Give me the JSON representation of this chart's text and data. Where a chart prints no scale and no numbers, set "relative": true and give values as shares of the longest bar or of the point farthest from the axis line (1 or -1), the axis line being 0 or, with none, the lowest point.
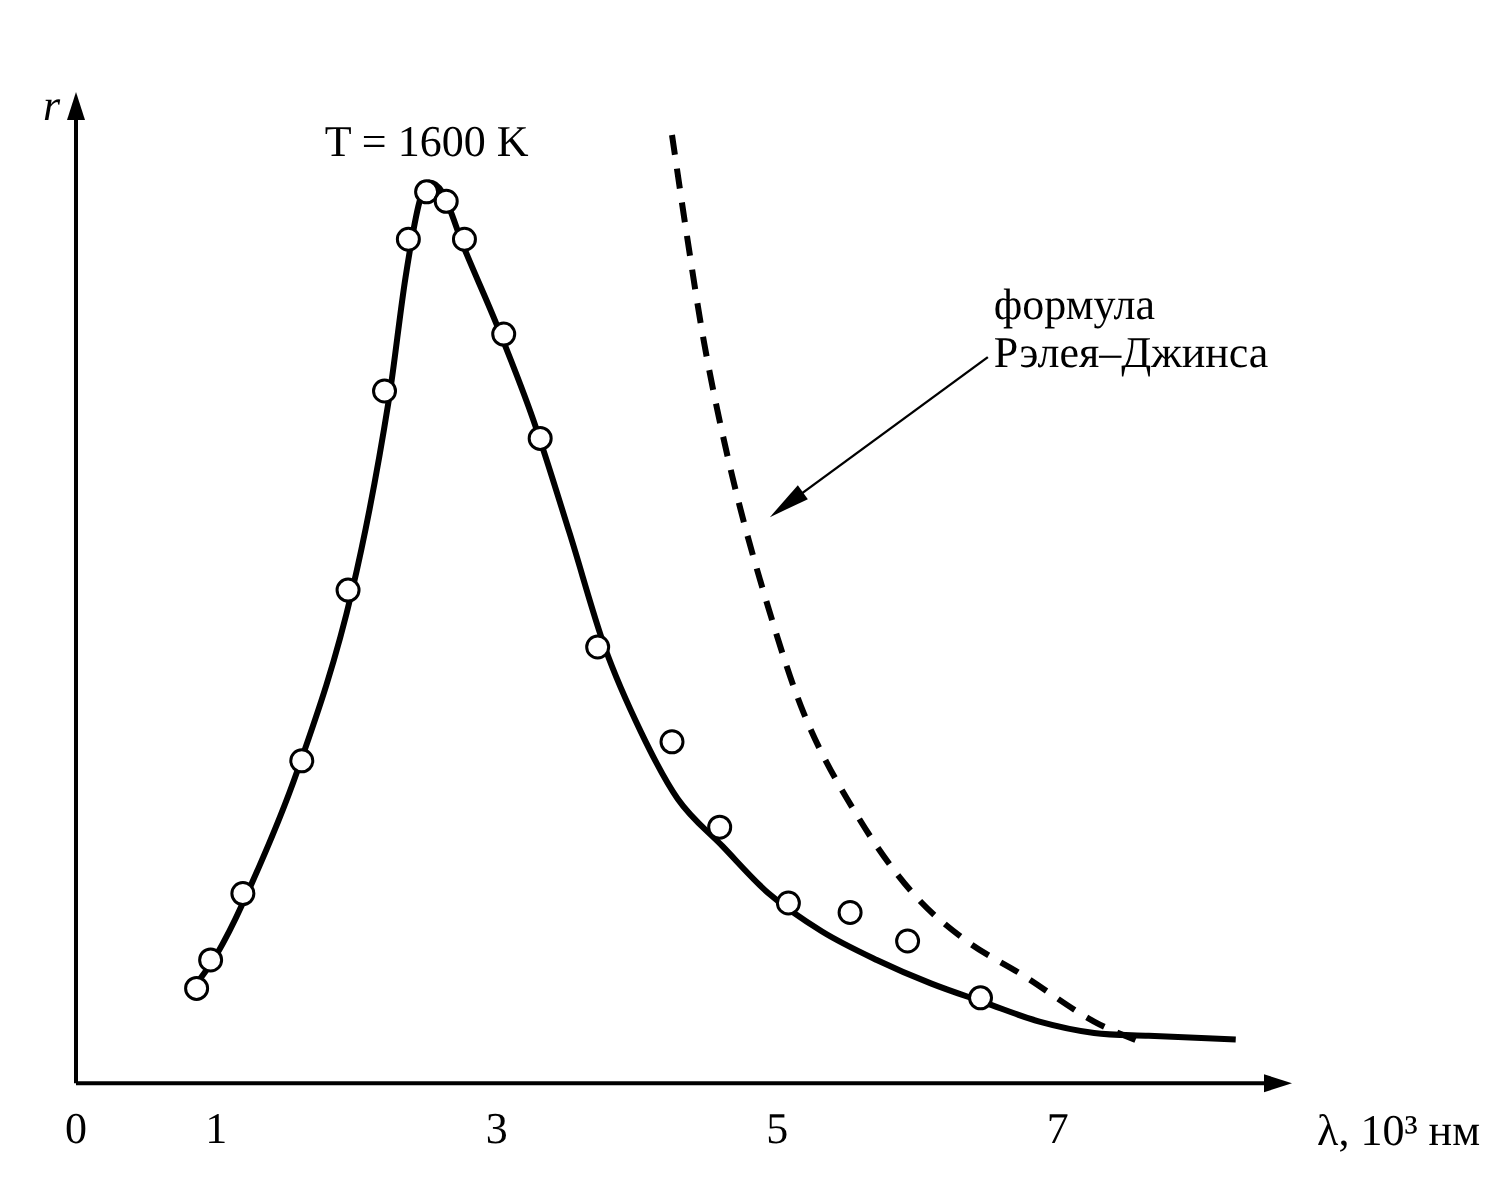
{
  "chart_data": {
    "type": "line",
    "relative": true,
    "xlabel": "λ, 10³ нм",
    "ylabel": "r",
    "xlim": [
      0,
      8.5
    ],
    "xticks": [
      0,
      1,
      3,
      5,
      7
    ],
    "grid": false,
    "legend": false,
    "annotations": [
      {
        "text": "T = 1600 K",
        "x": 2.5,
        "y": 0.95
      },
      "формула Рэлея–Джинса"
    ],
    "series": [
      {
        "type": "scatter",
        "marker": "circle",
        "color": "#000000",
        "x": [
          0.86,
          0.96,
          1.19,
          1.61,
          1.94,
          2.2,
          2.37,
          2.5,
          2.64,
          2.77,
          3.05,
          3.31,
          3.72,
          4.25,
          4.59,
          5.08,
          5.52,
          5.93,
          6.45
        ],
        "values": [
          0.1,
          0.13,
          0.2,
          0.34,
          0.52,
          0.73,
          0.89,
          0.94,
          0.93,
          0.89,
          0.79,
          0.68,
          0.46,
          0.36,
          0.27,
          0.19,
          0.18,
          0.15,
          0.09
        ]
      },
      {
        "type": "line",
        "line_style": "solid",
        "color": "#000000",
        "x": [
          0.81,
          1.0,
          1.19,
          1.58,
          1.97,
          2.23,
          2.35,
          2.45,
          2.52,
          2.61,
          2.77,
          3.0,
          3.26,
          3.52,
          3.77,
          4.03,
          4.29,
          4.61,
          4.94,
          5.32,
          5.71,
          6.1,
          6.48,
          6.87,
          7.26,
          7.65,
          8.27
        ],
        "values": [
          0.095,
          0.135,
          0.19,
          0.33,
          0.52,
          0.72,
          0.85,
          0.93,
          0.95,
          0.94,
          0.88,
          0.8,
          0.7,
          0.58,
          0.46,
          0.37,
          0.3,
          0.25,
          0.2,
          0.16,
          0.13,
          0.105,
          0.085,
          0.065,
          0.053,
          0.05,
          0.046
        ]
      },
      {
        "type": "line",
        "line_style": "dashed",
        "color": "#000000",
        "x": [
          4.25,
          4.35,
          4.48,
          4.68,
          4.94,
          5.19,
          5.58,
          5.97,
          6.35,
          6.74,
          7.26,
          7.61
        ],
        "values": [
          1.0,
          0.9,
          0.78,
          0.64,
          0.5,
          0.39,
          0.28,
          0.2,
          0.15,
          0.115,
          0.065,
          0.042
        ]
      }
    ]
  }
}
